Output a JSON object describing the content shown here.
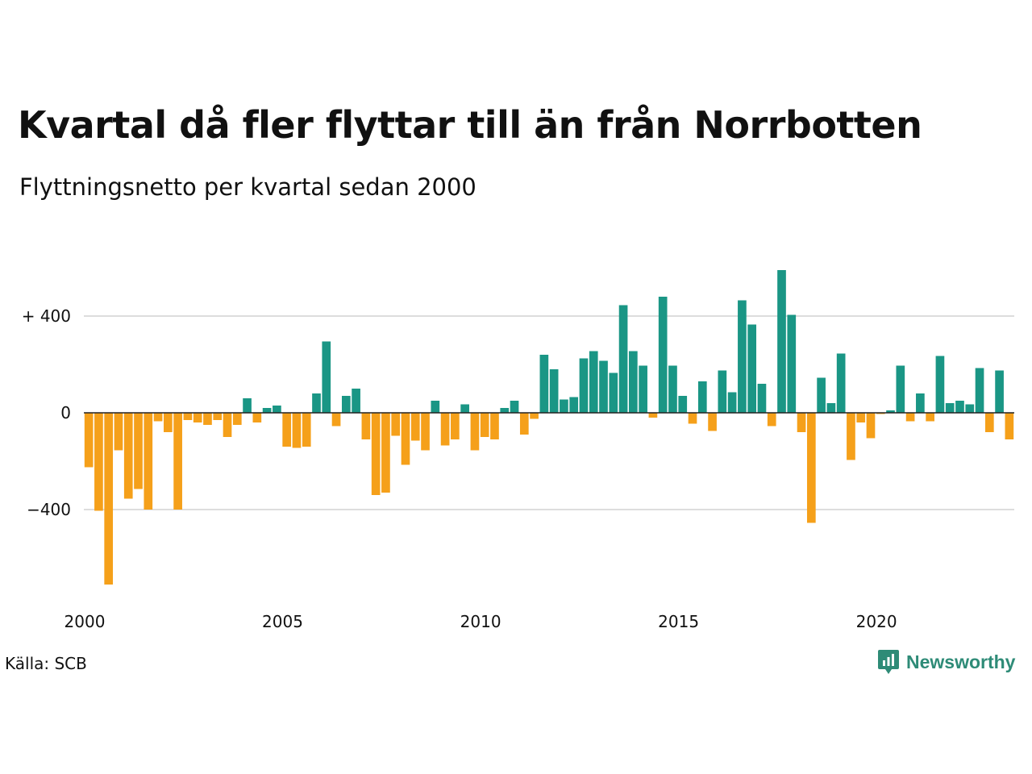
{
  "title": "Kvartal då fler flyttar till än från Norrbotten",
  "subtitle": "Flyttningsnetto per kvartal sedan 2000",
  "source": "Källa: SCB",
  "brand": "Newsworthy",
  "colors": {
    "positive": "#1a9685",
    "negative": "#f5a01a",
    "grid": "#dddddd",
    "brand": "#2e8b77"
  },
  "chart_data": {
    "type": "bar",
    "x_unit": "quarter",
    "start": "2000 Q1",
    "x_ticks": [
      "2000",
      "2005",
      "2010",
      "2015",
      "2020"
    ],
    "y_ticks": [
      {
        "value": 400,
        "label": "+ 400"
      },
      {
        "value": 0,
        "label": "0"
      },
      {
        "value": -400,
        "label": "−400"
      }
    ],
    "ylim": [
      -720,
      600
    ],
    "grid": true,
    "values": [
      -225,
      -405,
      -710,
      -155,
      -355,
      -315,
      -400,
      -35,
      -80,
      -400,
      -30,
      -40,
      -50,
      -30,
      -100,
      -50,
      60,
      -40,
      20,
      30,
      -140,
      -145,
      -140,
      80,
      295,
      -55,
      70,
      100,
      -110,
      -340,
      -330,
      -95,
      -215,
      -115,
      -155,
      50,
      -135,
      -110,
      35,
      -155,
      -100,
      -110,
      20,
      50,
      -90,
      -25,
      240,
      180,
      55,
      65,
      225,
      255,
      215,
      165,
      445,
      255,
      195,
      -20,
      480,
      195,
      70,
      -45,
      130,
      -75,
      175,
      85,
      465,
      365,
      120,
      -55,
      590,
      405,
      -80,
      -455,
      145,
      40,
      245,
      -195,
      -40,
      -105,
      -5,
      10,
      195,
      -35,
      80,
      -35,
      235,
      40,
      50,
      35,
      185,
      -80,
      175,
      -110
    ]
  }
}
